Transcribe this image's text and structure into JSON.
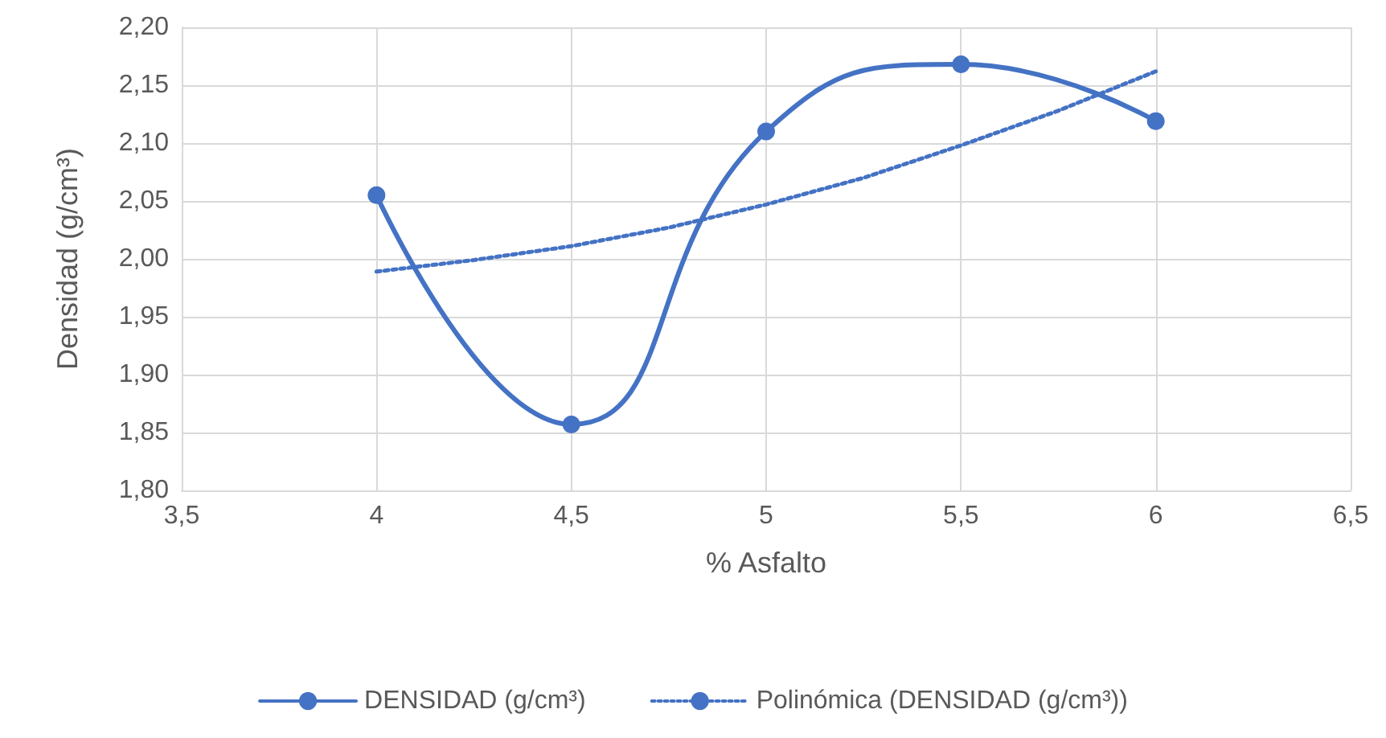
{
  "chart_data": {
    "type": "line",
    "xlabel": "% Asfalto",
    "ylabel": "Densidad (g/cm³)",
    "xlim": [
      3.5,
      6.5
    ],
    "xticks": [
      {
        "value": 3.5,
        "label": "3,5"
      },
      {
        "value": 4,
        "label": "4"
      },
      {
        "value": 4.5,
        "label": "4,5"
      },
      {
        "value": 5,
        "label": "5"
      },
      {
        "value": 5.5,
        "label": "5,5"
      },
      {
        "value": 6,
        "label": "6"
      },
      {
        "value": 6.5,
        "label": "6,5"
      }
    ],
    "ylim": [
      1.8,
      2.2
    ],
    "yticks": [
      {
        "value": 1.8,
        "label": "1,80"
      },
      {
        "value": 1.85,
        "label": "1,85"
      },
      {
        "value": 1.9,
        "label": "1,90"
      },
      {
        "value": 1.95,
        "label": "1,95"
      },
      {
        "value": 2.0,
        "label": "2,00"
      },
      {
        "value": 2.05,
        "label": "2,05"
      },
      {
        "value": 2.1,
        "label": "2,10"
      },
      {
        "value": 2.15,
        "label": "2,15"
      },
      {
        "value": 2.2,
        "label": "2,20"
      }
    ],
    "series": [
      {
        "name": "DENSIDAD (g/cm³)",
        "color": "#4472c4",
        "x": [
          4,
          4.5,
          5,
          5.5,
          6
        ],
        "values": [
          2.055,
          1.857,
          2.11,
          2.168,
          2.119
        ],
        "marker": "circle",
        "line_style": "solid"
      },
      {
        "name": "Polinómica (DENSIDAD (g/cm³))",
        "color": "#4472c4",
        "x": [
          4,
          4.25,
          4.5,
          4.75,
          5,
          5.25,
          5.5,
          5.75,
          6
        ],
        "values": [
          1.989,
          1.999,
          2.011,
          2.027,
          2.047,
          2.07,
          2.098,
          2.128,
          2.162
        ],
        "marker": "none",
        "line_style": "dotted"
      }
    ],
    "grid": true,
    "legend": "bottom"
  }
}
